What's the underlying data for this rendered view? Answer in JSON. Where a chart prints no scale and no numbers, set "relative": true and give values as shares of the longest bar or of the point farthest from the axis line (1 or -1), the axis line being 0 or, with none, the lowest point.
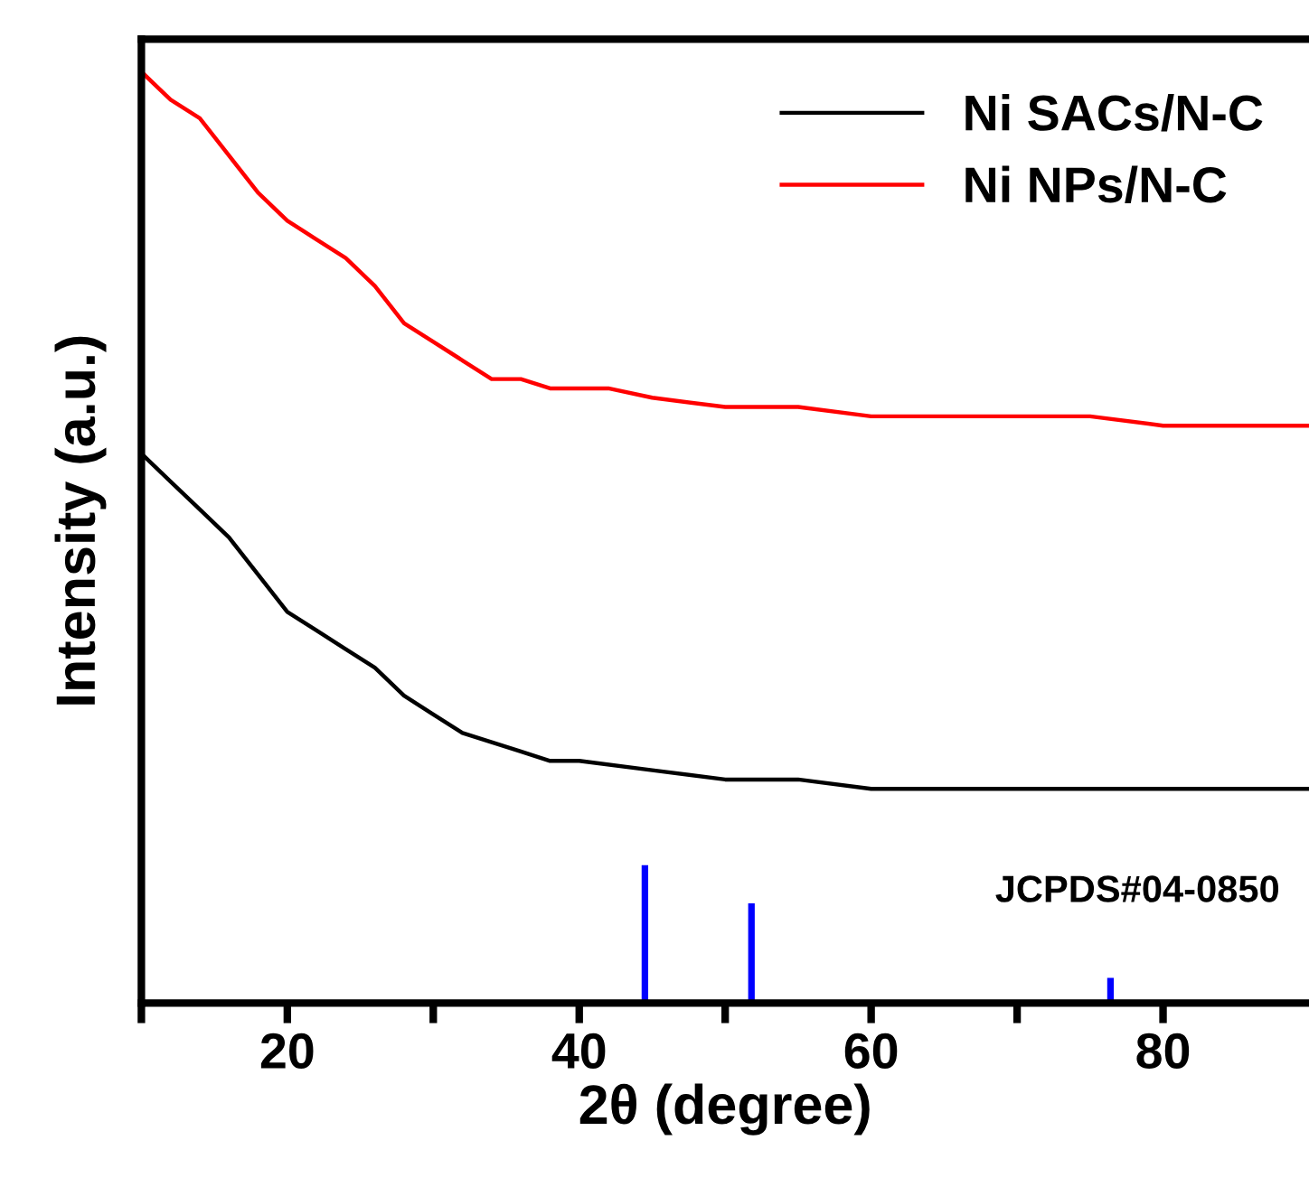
{
  "chart_data": {
    "type": "line",
    "relative": true,
    "xlabel": "2θ (degree)",
    "ylabel": "Intensity (a.u.)",
    "xlim": [
      10,
      90
    ],
    "xticks": [
      {
        "value": 10,
        "label": null
      },
      20,
      {
        "value": 30,
        "label": null
      },
      40,
      {
        "value": 50,
        "label": null
      },
      60,
      {
        "value": 70,
        "label": null
      },
      80
    ],
    "legend": "top right",
    "annotations": [
      "JCPDS#04-0850"
    ],
    "grid": false,
    "tick_labels": "x",
    "series": [
      {
        "name": "Ni SACs/N-C",
        "color": "#000000",
        "x": [
          10,
          12,
          14,
          16,
          18,
          20,
          22,
          24,
          26,
          28,
          30,
          32,
          34,
          36,
          38,
          40,
          45,
          50,
          55,
          60,
          70,
          80,
          90
        ],
        "values": [
          0.59,
          0.56,
          0.53,
          0.5,
          0.46,
          0.42,
          0.4,
          0.38,
          0.36,
          0.33,
          0.31,
          0.29,
          0.28,
          0.27,
          0.26,
          0.26,
          0.25,
          0.24,
          0.24,
          0.23,
          0.23,
          0.23,
          0.23
        ]
      },
      {
        "name": "Ni NPs/N-C",
        "color": "#ff0000",
        "x": [
          10,
          12,
          14,
          16,
          18,
          20,
          22,
          24,
          26,
          28,
          30,
          32,
          34,
          36,
          38,
          40,
          42,
          45,
          50,
          55,
          60,
          65,
          70,
          75,
          80,
          85,
          90
        ],
        "values": [
          1.0,
          0.97,
          0.95,
          0.91,
          0.87,
          0.84,
          0.82,
          0.8,
          0.77,
          0.73,
          0.71,
          0.69,
          0.67,
          0.67,
          0.66,
          0.66,
          0.66,
          0.65,
          0.64,
          0.64,
          0.63,
          0.63,
          0.63,
          0.63,
          0.62,
          0.62,
          0.62
        ]
      },
      {
        "type": "bar",
        "color": "#0000ff",
        "x": [
          44.5,
          51.8,
          76.4
        ],
        "values": [
          0.148,
          0.107,
          0.027
        ]
      }
    ]
  }
}
